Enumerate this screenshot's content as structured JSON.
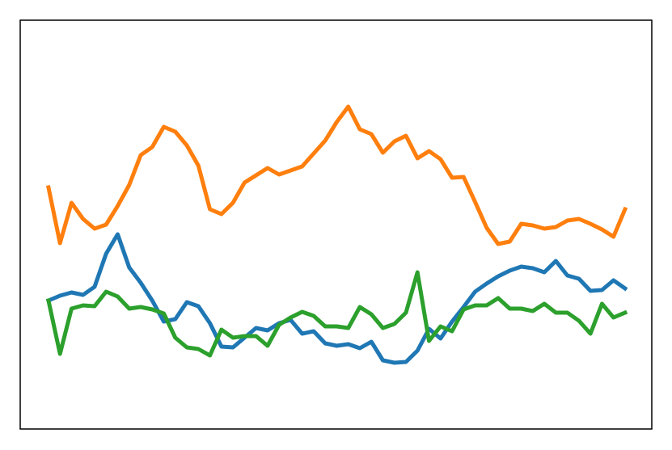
{
  "chart_data": {
    "type": "line",
    "x": [
      0,
      1,
      2,
      3,
      4,
      5,
      6,
      7,
      8,
      9,
      10,
      11,
      12,
      13,
      14,
      15,
      16,
      17,
      18,
      19,
      20,
      21,
      22,
      23,
      24,
      25,
      26,
      27,
      28,
      29,
      30,
      31,
      32,
      33,
      34,
      35,
      36,
      37,
      38,
      39,
      40,
      41,
      42,
      43,
      44,
      45,
      46,
      47,
      48,
      49,
      50
    ],
    "xlim": [
      -2.45,
      52.32
    ],
    "ylim": [
      0,
      506
    ],
    "series": [
      {
        "color": "#1f77b4",
        "values": [
          159,
          165,
          169,
          166,
          176,
          217,
          241,
          200,
          181,
          159,
          133,
          136,
          157,
          152,
          131,
          102,
          101,
          113,
          125,
          122,
          131,
          135,
          118,
          121,
          106,
          103,
          105,
          100,
          108,
          85,
          82,
          83,
          97,
          124,
          112,
          133,
          151,
          170,
          180,
          189,
          196,
          201,
          199,
          194,
          208,
          190,
          186,
          171,
          172,
          184,
          174
        ]
      },
      {
        "color": "#ff7f0e",
        "values": [
          299,
          230,
          280,
          260,
          248,
          253,
          276,
          302,
          339,
          349,
          374,
          368,
          351,
          326,
          272,
          266,
          280,
          305,
          314,
          323,
          315,
          320,
          325,
          341,
          357,
          380,
          399,
          371,
          365,
          342,
          356,
          363,
          335,
          344,
          334,
          311,
          312,
          281,
          249,
          229,
          232,
          254,
          252,
          248,
          250,
          258,
          260,
          254,
          247,
          238,
          272
        ]
      },
      {
        "color": "#2ca02c",
        "values": [
          159,
          93,
          149,
          153,
          152,
          170,
          164,
          149,
          151,
          148,
          143,
          113,
          101,
          99,
          91,
          123,
          113,
          115,
          115,
          103,
          129,
          138,
          145,
          140,
          127,
          127,
          125,
          151,
          142,
          125,
          130,
          144,
          194,
          109,
          127,
          121,
          148,
          153,
          153,
          162,
          149,
          149,
          146,
          155,
          144,
          144,
          134,
          118,
          155,
          138,
          144
        ]
      }
    ]
  }
}
